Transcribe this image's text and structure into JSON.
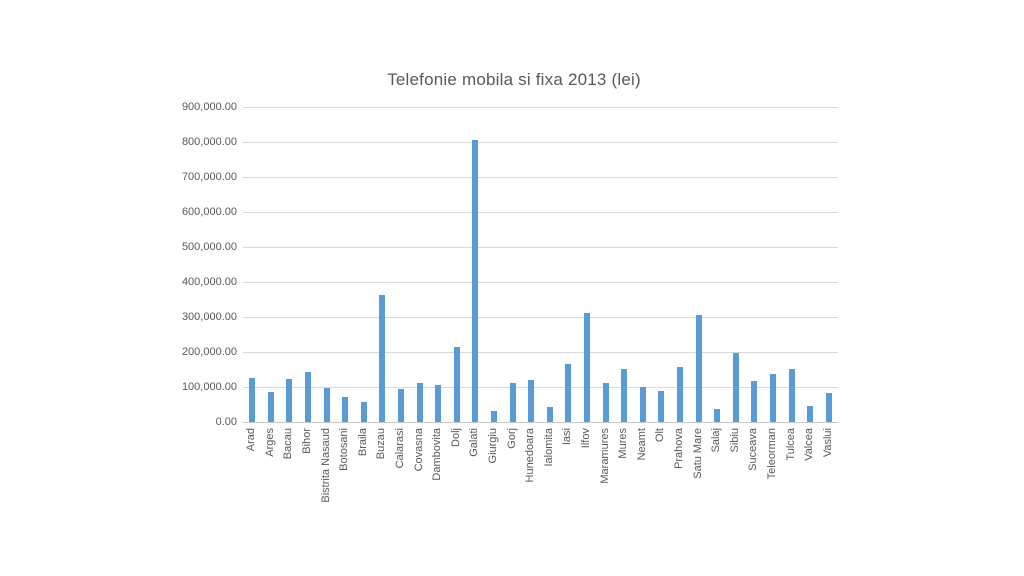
{
  "page": {
    "background_color": "#ffffff"
  },
  "chart_data": {
    "type": "bar",
    "title": "Telefonie mobila si fixa 2013 (lei)",
    "categories": [
      "Arad",
      "Arges",
      "Bacau",
      "Bihor",
      "Bistrita Nasaud",
      "Botosani",
      "Braila",
      "Buzau",
      "Calarasi",
      "Covasna",
      "Dambovita",
      "Dolj",
      "Galati",
      "Giurgiu",
      "Gorj",
      "Hunedoara",
      "Ialomita",
      "Iasi",
      "Ilfov",
      "Maramures",
      "Mures",
      "Neamt",
      "Olt",
      "Prahova",
      "Satu Mare",
      "Salaj",
      "Sibiu",
      "Suceava",
      "Teleorman",
      "Tulcea",
      "Valcea",
      "Vaslui"
    ],
    "values": [
      125000,
      87000,
      122000,
      142000,
      97000,
      70000,
      57000,
      362000,
      95000,
      110000,
      105000,
      214000,
      806000,
      30000,
      110000,
      119000,
      43000,
      167000,
      310000,
      112000,
      150000,
      101000,
      88000,
      157000,
      306000,
      38000,
      196000,
      117000,
      137000,
      150000,
      46000,
      84000
    ],
    "xlabel": "",
    "ylabel": "",
    "ylim": [
      0,
      900000
    ],
    "ytick_step": 100000,
    "ytick_labels_top_down": [
      "900,000.00",
      "800,000.00",
      "700,000.00",
      "600,000.00",
      "500,000.00",
      "400,000.00",
      "300,000.00",
      "200,000.00",
      "100,000.00",
      "0.00"
    ],
    "grid": true,
    "legend": "none",
    "bar_color": "#5b9bd5",
    "gridline_color": "#d9d9d9",
    "axis_line_color": "#c6c6c6",
    "tick_text_color": "#595959",
    "title_color": "#595959"
  }
}
